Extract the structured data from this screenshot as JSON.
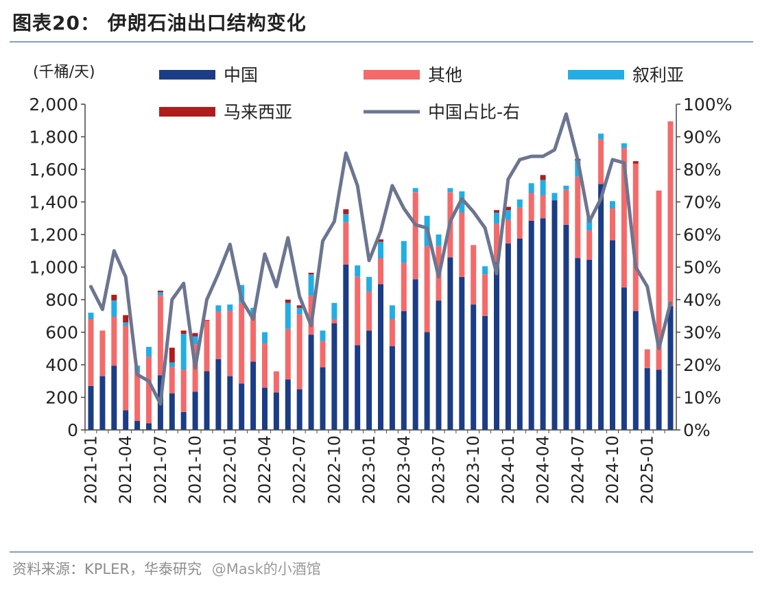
{
  "header": {
    "title": "图表20：  伊朗石油出口结构变化"
  },
  "footer": {
    "source": "资料来源：KPLER，华泰研究",
    "watermark": "@Mask的小酒馆"
  },
  "colors": {
    "china": "#1b3d86",
    "other": "#f46a6a",
    "syria": "#22aee4",
    "malaysia": "#b01c1c",
    "share": "#6c7590"
  },
  "chart_data": {
    "type": "bar",
    "stacked": true,
    "title": "伊朗石油出口结构变化",
    "ylabel": "(千桶/天)",
    "ylim": [
      0,
      2000
    ],
    "y2lim": [
      0,
      100
    ],
    "yticks": [
      "0",
      "200",
      "400",
      "600",
      "800",
      "1,000",
      "1,200",
      "1,400",
      "1,600",
      "1,800",
      "2,000"
    ],
    "y2ticks": [
      "0%",
      "10%",
      "20%",
      "30%",
      "40%",
      "50%",
      "60%",
      "70%",
      "80%",
      "90%",
      "100%"
    ],
    "xticklabels": [
      "2021-01",
      "2021-04",
      "2021-07",
      "2021-10",
      "2022-01",
      "2022-04",
      "2022-07",
      "2022-10",
      "2023-01",
      "2023-04",
      "2023-07",
      "2023-10",
      "2024-01",
      "2024-04",
      "2024-07",
      "2024-10",
      "2025-01"
    ],
    "legend": [
      "中国",
      "其他",
      "叙利亚",
      "马来西亚",
      "中国占比-右"
    ],
    "categories": [
      "2021-01",
      "2021-02",
      "2021-03",
      "2021-04",
      "2021-05",
      "2021-06",
      "2021-07",
      "2021-08",
      "2021-09",
      "2021-10",
      "2021-11",
      "2021-12",
      "2022-01",
      "2022-02",
      "2022-03",
      "2022-04",
      "2022-05",
      "2022-06",
      "2022-07",
      "2022-08",
      "2022-09",
      "2022-10",
      "2022-11",
      "2022-12",
      "2023-01",
      "2023-02",
      "2023-03",
      "2023-04",
      "2023-05",
      "2023-06",
      "2023-07",
      "2023-08",
      "2023-09",
      "2023-10",
      "2023-11",
      "2023-12",
      "2024-01",
      "2024-02",
      "2024-03",
      "2024-04",
      "2024-05",
      "2024-06",
      "2024-07",
      "2024-08",
      "2024-09",
      "2024-10",
      "2024-11",
      "2024-12",
      "2025-01",
      "2025-02",
      "2025-03"
    ],
    "series": [
      {
        "name": "中国",
        "values": [
          270,
          330,
          395,
          120,
          55,
          40,
          335,
          225,
          110,
          235,
          360,
          435,
          330,
          285,
          420,
          260,
          230,
          310,
          250,
          585,
          385,
          655,
          1015,
          520,
          610,
          895,
          515,
          730,
          925,
          600,
          795,
          1060,
          940,
          770,
          700,
          1030,
          1145,
          1175,
          1285,
          1300,
          1410,
          1260,
          1055,
          1045,
          1510,
          1165,
          875,
          730,
          380,
          370,
          760
        ]
      },
      {
        "name": "其他",
        "values": [
          410,
          280,
          300,
          520,
          300,
          410,
          490,
          160,
          260,
          290,
          310,
          290,
          400,
          495,
          290,
          270,
          130,
          310,
          460,
          240,
          160,
          25,
          260,
          420,
          240,
          160,
          165,
          295,
          535,
          530,
          335,
          400,
          395,
          365,
          255,
          235,
          145,
          190,
          170,
          140,
          0,
          215,
          500,
          180,
          275,
          195,
          855,
          905,
          115,
          1100,
          1135
        ]
      },
      {
        "name": "叙利亚",
        "values": [
          40,
          0,
          100,
          20,
          40,
          60,
          20,
          30,
          220,
          50,
          0,
          40,
          40,
          110,
          40,
          70,
          0,
          160,
          40,
          130,
          65,
          100,
          50,
          70,
          90,
          100,
          85,
          135,
          25,
          185,
          70,
          25,
          130,
          0,
          50,
          70,
          60,
          50,
          60,
          95,
          45,
          25,
          100,
          80,
          35,
          45,
          30,
          0,
          0,
          0,
          0
        ]
      },
      {
        "name": "马来西亚",
        "values": [
          0,
          0,
          35,
          45,
          0,
          0,
          10,
          90,
          20,
          20,
          5,
          0,
          0,
          0,
          0,
          0,
          0,
          20,
          15,
          10,
          0,
          0,
          30,
          0,
          0,
          15,
          0,
          0,
          0,
          0,
          0,
          0,
          0,
          0,
          0,
          15,
          20,
          0,
          0,
          30,
          0,
          0,
          10,
          0,
          0,
          0,
          0,
          15,
          0,
          0,
          0
        ]
      }
    ],
    "share": {
      "name": "中国占比-右",
      "values": [
        44,
        37,
        55,
        47,
        17,
        15,
        8,
        40,
        45,
        19,
        40,
        48,
        57,
        40,
        34,
        54,
        44,
        59,
        41,
        32,
        58,
        64,
        85,
        75,
        52,
        61,
        75,
        68,
        63,
        62,
        47,
        64,
        71,
        67,
        62,
        48,
        77,
        83,
        84,
        84,
        86,
        97,
        83,
        64,
        71,
        83,
        82,
        50,
        44,
        25,
        39
      ]
    }
  }
}
